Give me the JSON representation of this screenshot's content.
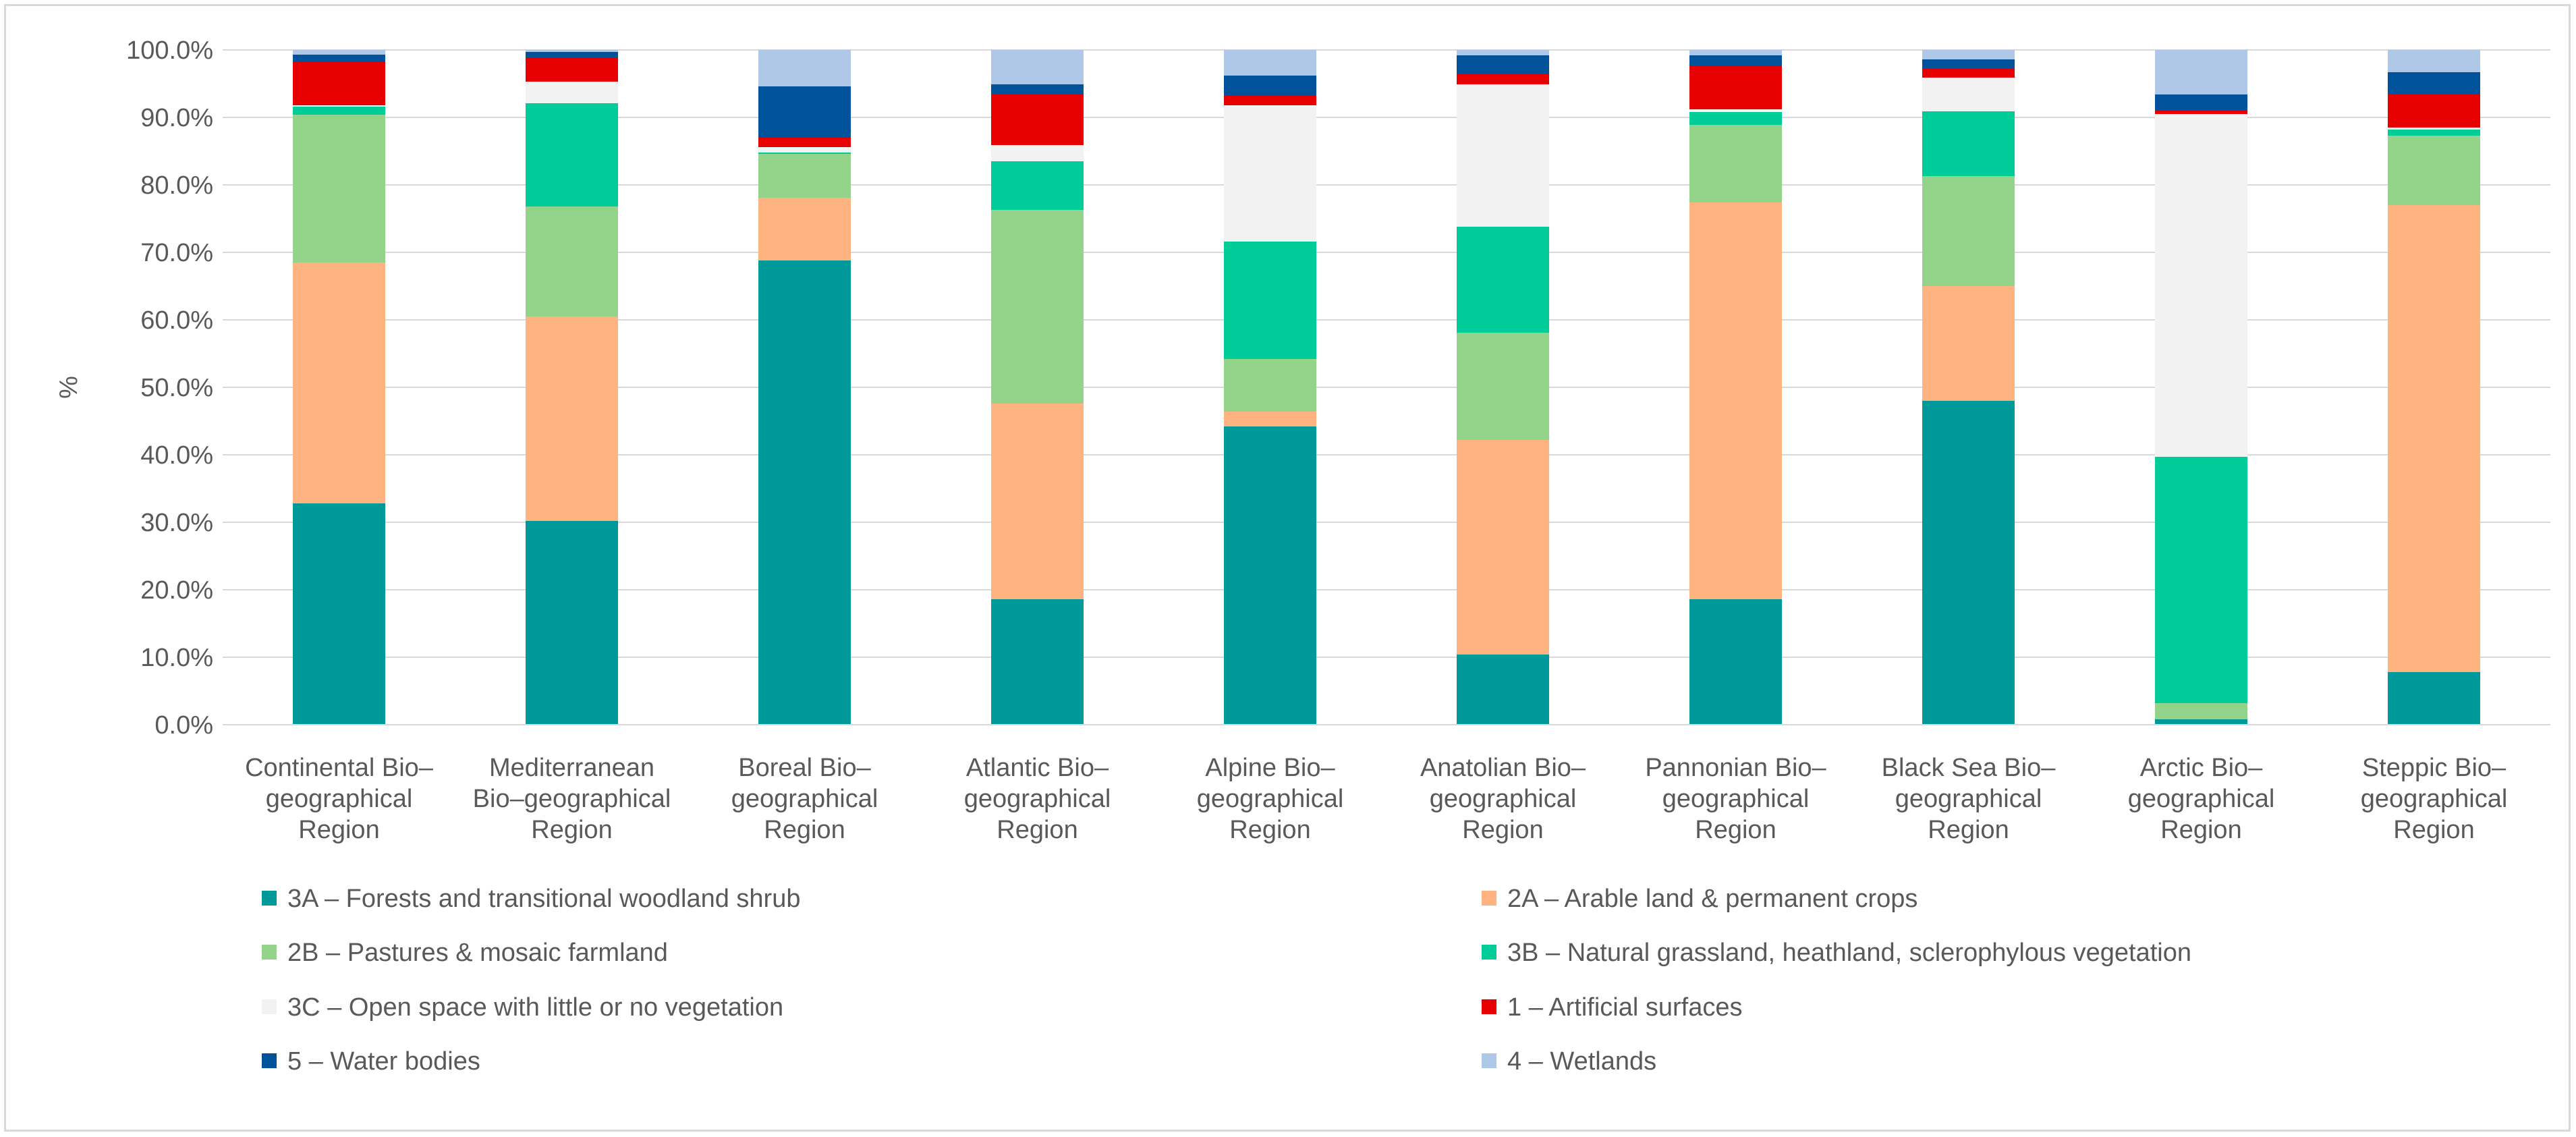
{
  "chart_data": {
    "type": "bar",
    "stacked": "percent",
    "title": "",
    "xlabel": "",
    "ylabel": "%",
    "ylim": [
      0,
      100
    ],
    "yticks": [
      "0.0%",
      "10.0%",
      "20.0%",
      "30.0%",
      "40.0%",
      "50.0%",
      "60.0%",
      "70.0%",
      "80.0%",
      "90.0%",
      "100.0%"
    ],
    "grid": true,
    "legend_position": "bottom",
    "categories": [
      [
        "Continental Bio–",
        "geographical",
        "Region"
      ],
      [
        "Mediterranean",
        "Bio–geographical",
        "Region"
      ],
      [
        "Boreal Bio–",
        "geographical",
        "Region"
      ],
      [
        "Atlantic Bio–",
        "geographical",
        "Region"
      ],
      [
        "Alpine Bio–",
        "geographical",
        "Region"
      ],
      [
        "Anatolian Bio–",
        "geographical",
        "Region"
      ],
      [
        "Pannonian Bio–",
        "geographical",
        "Region"
      ],
      [
        "Black Sea Bio–",
        "geographical",
        "Region"
      ],
      [
        "Arctic Bio–",
        "geographical",
        "Region"
      ],
      [
        "Steppic Bio–",
        "geographical",
        "Region"
      ]
    ],
    "series": [
      {
        "name": "3A – Forests and transitional woodland shrub",
        "color": "#009999",
        "values": [
          32.8,
          30.2,
          68.8,
          18.6,
          44.2,
          10.4,
          18.6,
          48.0,
          0.8,
          7.8
        ]
      },
      {
        "name": "2A – Arable land & permanent crops",
        "color": "#FFB380",
        "values": [
          35.7,
          30.3,
          9.3,
          29.0,
          2.2,
          31.8,
          58.8,
          17.0,
          0.0,
          69.2
        ]
      },
      {
        "name": "2B – Pastures & mosaic farmland",
        "color": "#94D38A",
        "values": [
          21.9,
          16.3,
          6.5,
          28.7,
          7.8,
          15.9,
          11.5,
          16.3,
          2.4,
          10.3
        ]
      },
      {
        "name": "3B – Natural grassland, heathland, sclerophylous vegetation",
        "color": "#00CC99",
        "values": [
          1.2,
          15.3,
          0.2,
          7.2,
          17.4,
          15.7,
          1.9,
          9.6,
          36.5,
          0.9
        ]
      },
      {
        "name": "3C – Open space with little or no vegetation",
        "color": "#F2F2F2",
        "values": [
          0.2,
          3.2,
          0.8,
          2.4,
          20.2,
          21.1,
          0.4,
          5.0,
          50.8,
          0.3
        ]
      },
      {
        "name": "1 – Artificial surfaces",
        "color": "#E60000",
        "values": [
          6.5,
          3.6,
          1.4,
          7.6,
          1.5,
          1.6,
          6.4,
          1.4,
          0.6,
          4.9
        ]
      },
      {
        "name": "5 – Water bodies",
        "color": "#00529B",
        "values": [
          1.0,
          0.8,
          7.6,
          1.4,
          2.9,
          2.7,
          1.6,
          1.3,
          2.3,
          3.3
        ]
      },
      {
        "name": "4 – Wetlands",
        "color": "#B0C8E8",
        "values": [
          0.7,
          0.3,
          5.4,
          5.1,
          3.8,
          0.8,
          0.8,
          1.4,
          6.6,
          3.3
        ]
      }
    ]
  }
}
